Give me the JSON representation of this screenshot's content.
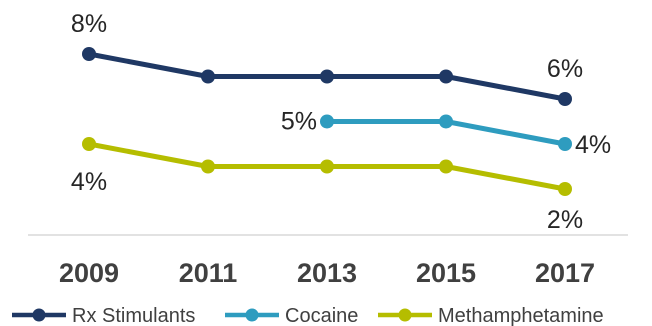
{
  "chart_data": {
    "type": "line",
    "x": [
      "2009",
      "2011",
      "2013",
      "2015",
      "2017"
    ],
    "ylim": [
      0,
      9
    ],
    "grid": false,
    "legend_position": "bottom",
    "series": [
      {
        "name": "Rx Stimulants",
        "color": "#1f3864",
        "values": [
          8,
          7,
          7,
          7,
          6
        ],
        "labels": [
          {
            "index": 0,
            "text": "8%"
          },
          {
            "index": 4,
            "text": "6%"
          }
        ]
      },
      {
        "name": "Cocaine",
        "color": "#2e9cbf",
        "values": [
          null,
          null,
          5,
          5,
          4
        ],
        "labels": [
          {
            "index": 2,
            "text": "5%"
          },
          {
            "index": 4,
            "text": "4%"
          }
        ]
      },
      {
        "name": "Methamphetamine",
        "color": "#b5bd00",
        "values": [
          4,
          3,
          3,
          3,
          2
        ],
        "labels": [
          {
            "index": 0,
            "text": "4%"
          },
          {
            "index": 4,
            "text": "2%"
          }
        ]
      }
    ]
  }
}
